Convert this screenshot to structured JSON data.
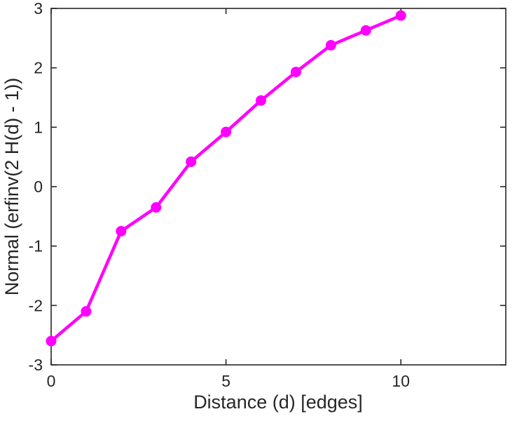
{
  "colors": {
    "background": "#FFFFFF",
    "line": "#FF00FF",
    "axis": "#262626"
  },
  "chart_data": {
    "type": "line",
    "x": [
      0,
      1,
      2,
      3,
      4,
      5,
      6,
      7,
      8,
      9,
      10
    ],
    "y": [
      -2.6,
      -2.1,
      -0.75,
      -0.35,
      0.42,
      0.92,
      1.45,
      1.93,
      2.38,
      2.63,
      2.88
    ],
    "xlabel": "Distance (d) [edges]",
    "ylabel": "Normal (erfinv(2 H(d) - 1))",
    "xlim": [
      0,
      13
    ],
    "ylim": [
      -3,
      3
    ],
    "xticks": [
      0,
      5,
      10
    ],
    "yticks": [
      -3,
      -2,
      -1,
      0,
      1,
      2,
      3
    ],
    "grid": false,
    "box": true,
    "legend": "none",
    "marker": "circle",
    "line_color": "#FF00FF",
    "axis_color": "#262626"
  }
}
